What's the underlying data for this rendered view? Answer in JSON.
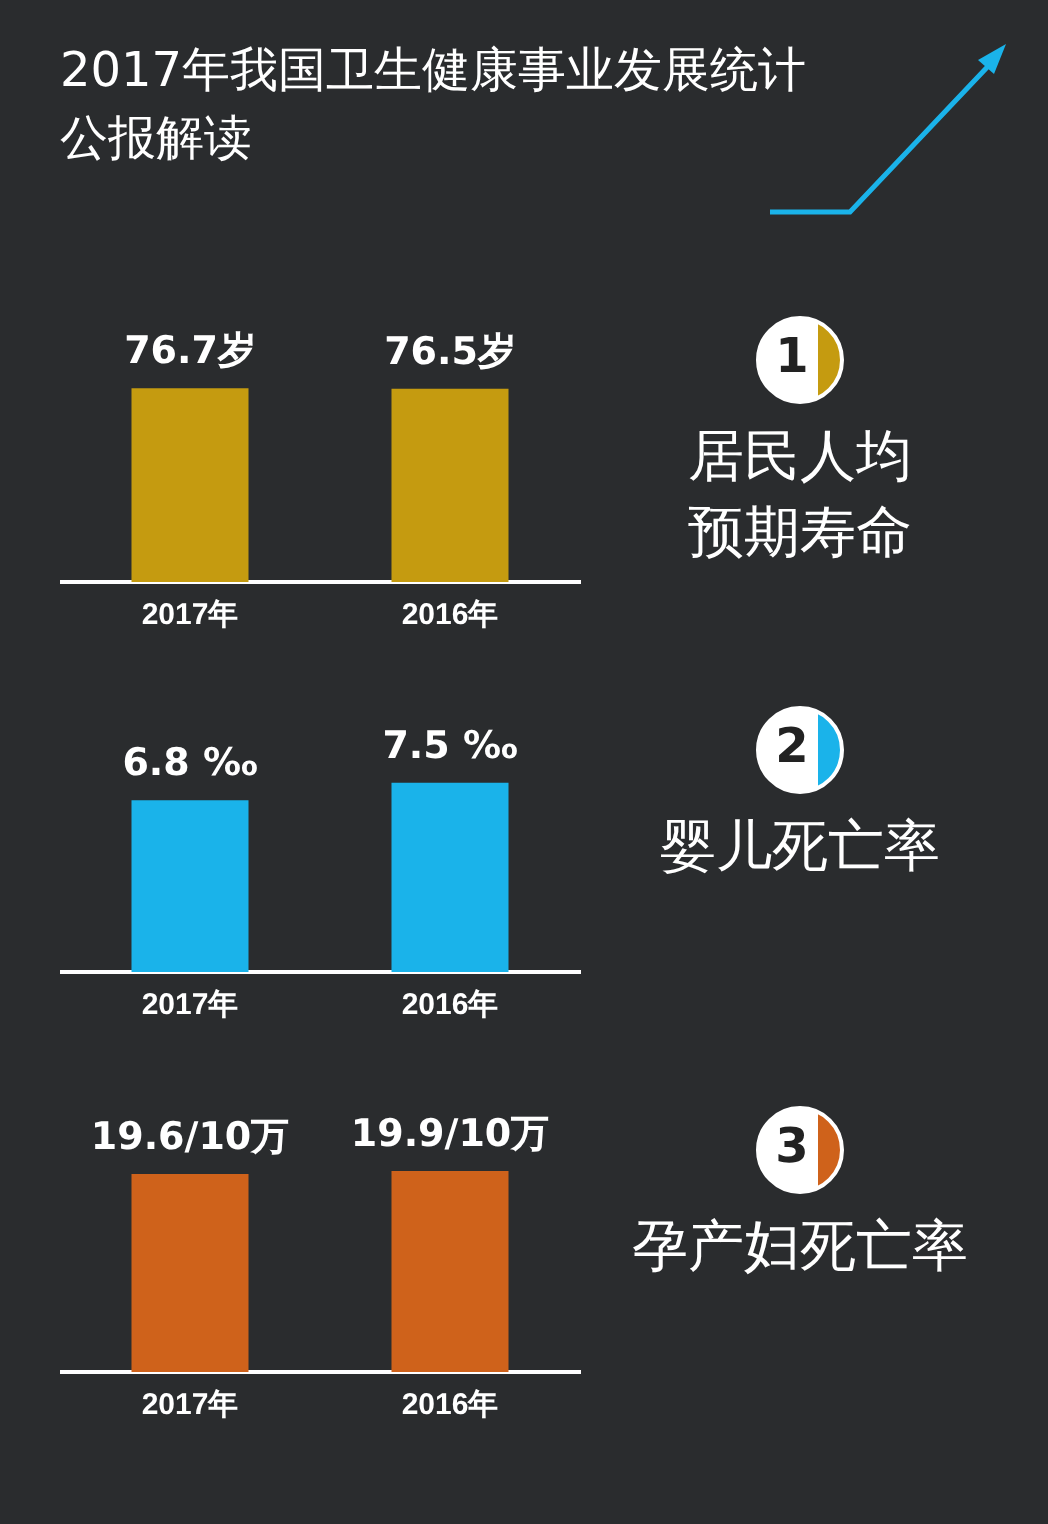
{
  "chart_data": [
    {
      "type": "other",
      "title": "2017年我国卫生健康事业发展统计公报解读"
    },
    {
      "type": "bar",
      "annotations": [
        "1",
        "居民人均预期寿命"
      ],
      "categories": [
        "2017年",
        "2016年"
      ],
      "values": [
        76.7,
        76.5
      ],
      "value_labels": [
        "76.7岁",
        "76.5岁"
      ],
      "color": "#c59b10",
      "tick_labels": "x",
      "legend": false
    },
    {
      "type": "bar",
      "annotations": [
        "2",
        "婴儿死亡率"
      ],
      "categories": [
        "2017年",
        "2016年"
      ],
      "values": [
        6.8,
        7.5
      ],
      "value_labels": [
        "6.8 ‰",
        "7.5 ‰"
      ],
      "color": "#1ab3ea",
      "tick_labels": "x",
      "legend": false
    },
    {
      "type": "bar",
      "annotations": [
        "3",
        "孕产妇死亡率"
      ],
      "categories": [
        "2017年",
        "2016年"
      ],
      "values": [
        19.6,
        19.9
      ],
      "value_labels": [
        "19.6/10万",
        "19.9/10万"
      ],
      "color": "#cf621b",
      "tick_labels": "x",
      "legend": false
    }
  ]
}
